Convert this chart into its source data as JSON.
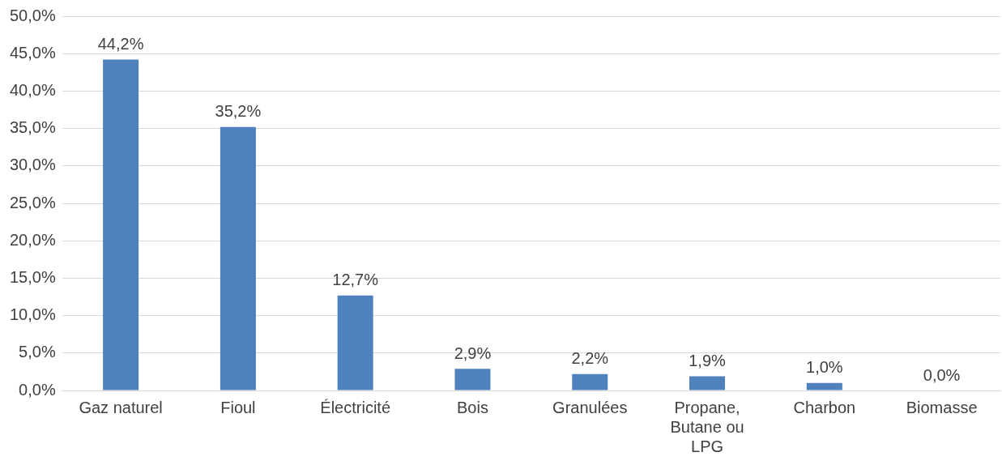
{
  "chart_data": {
    "type": "bar",
    "categories": [
      "Gaz naturel",
      "Fioul",
      "Électricité",
      "Bois",
      "Granulées",
      "Propane, Butane ou LPG",
      "Charbon",
      "Biomasse"
    ],
    "values": [
      44.2,
      35.2,
      12.7,
      2.9,
      2.2,
      1.9,
      1.0,
      0.0
    ],
    "value_labels": [
      "44,2%",
      "35,2%",
      "12,7%",
      "2,9%",
      "2,2%",
      "1,9%",
      "1,0%",
      "0,0%"
    ],
    "color": "#4f81bd",
    "ylim": [
      0,
      50
    ],
    "yticks": [
      {
        "value": 0,
        "label": "0,0%"
      },
      {
        "value": 5,
        "label": "5,0%"
      },
      {
        "value": 10,
        "label": "10,0%"
      },
      {
        "value": 15,
        "label": "15,0%"
      },
      {
        "value": 20,
        "label": "20,0%"
      },
      {
        "value": 25,
        "label": "25,0%"
      },
      {
        "value": 30,
        "label": "30,0%"
      },
      {
        "value": 35,
        "label": "35,0%"
      },
      {
        "value": 40,
        "label": "40,0%"
      },
      {
        "value": 45,
        "label": "45,0%"
      },
      {
        "value": 50,
        "label": "50,0%"
      }
    ],
    "grid": "y",
    "legend": false
  }
}
